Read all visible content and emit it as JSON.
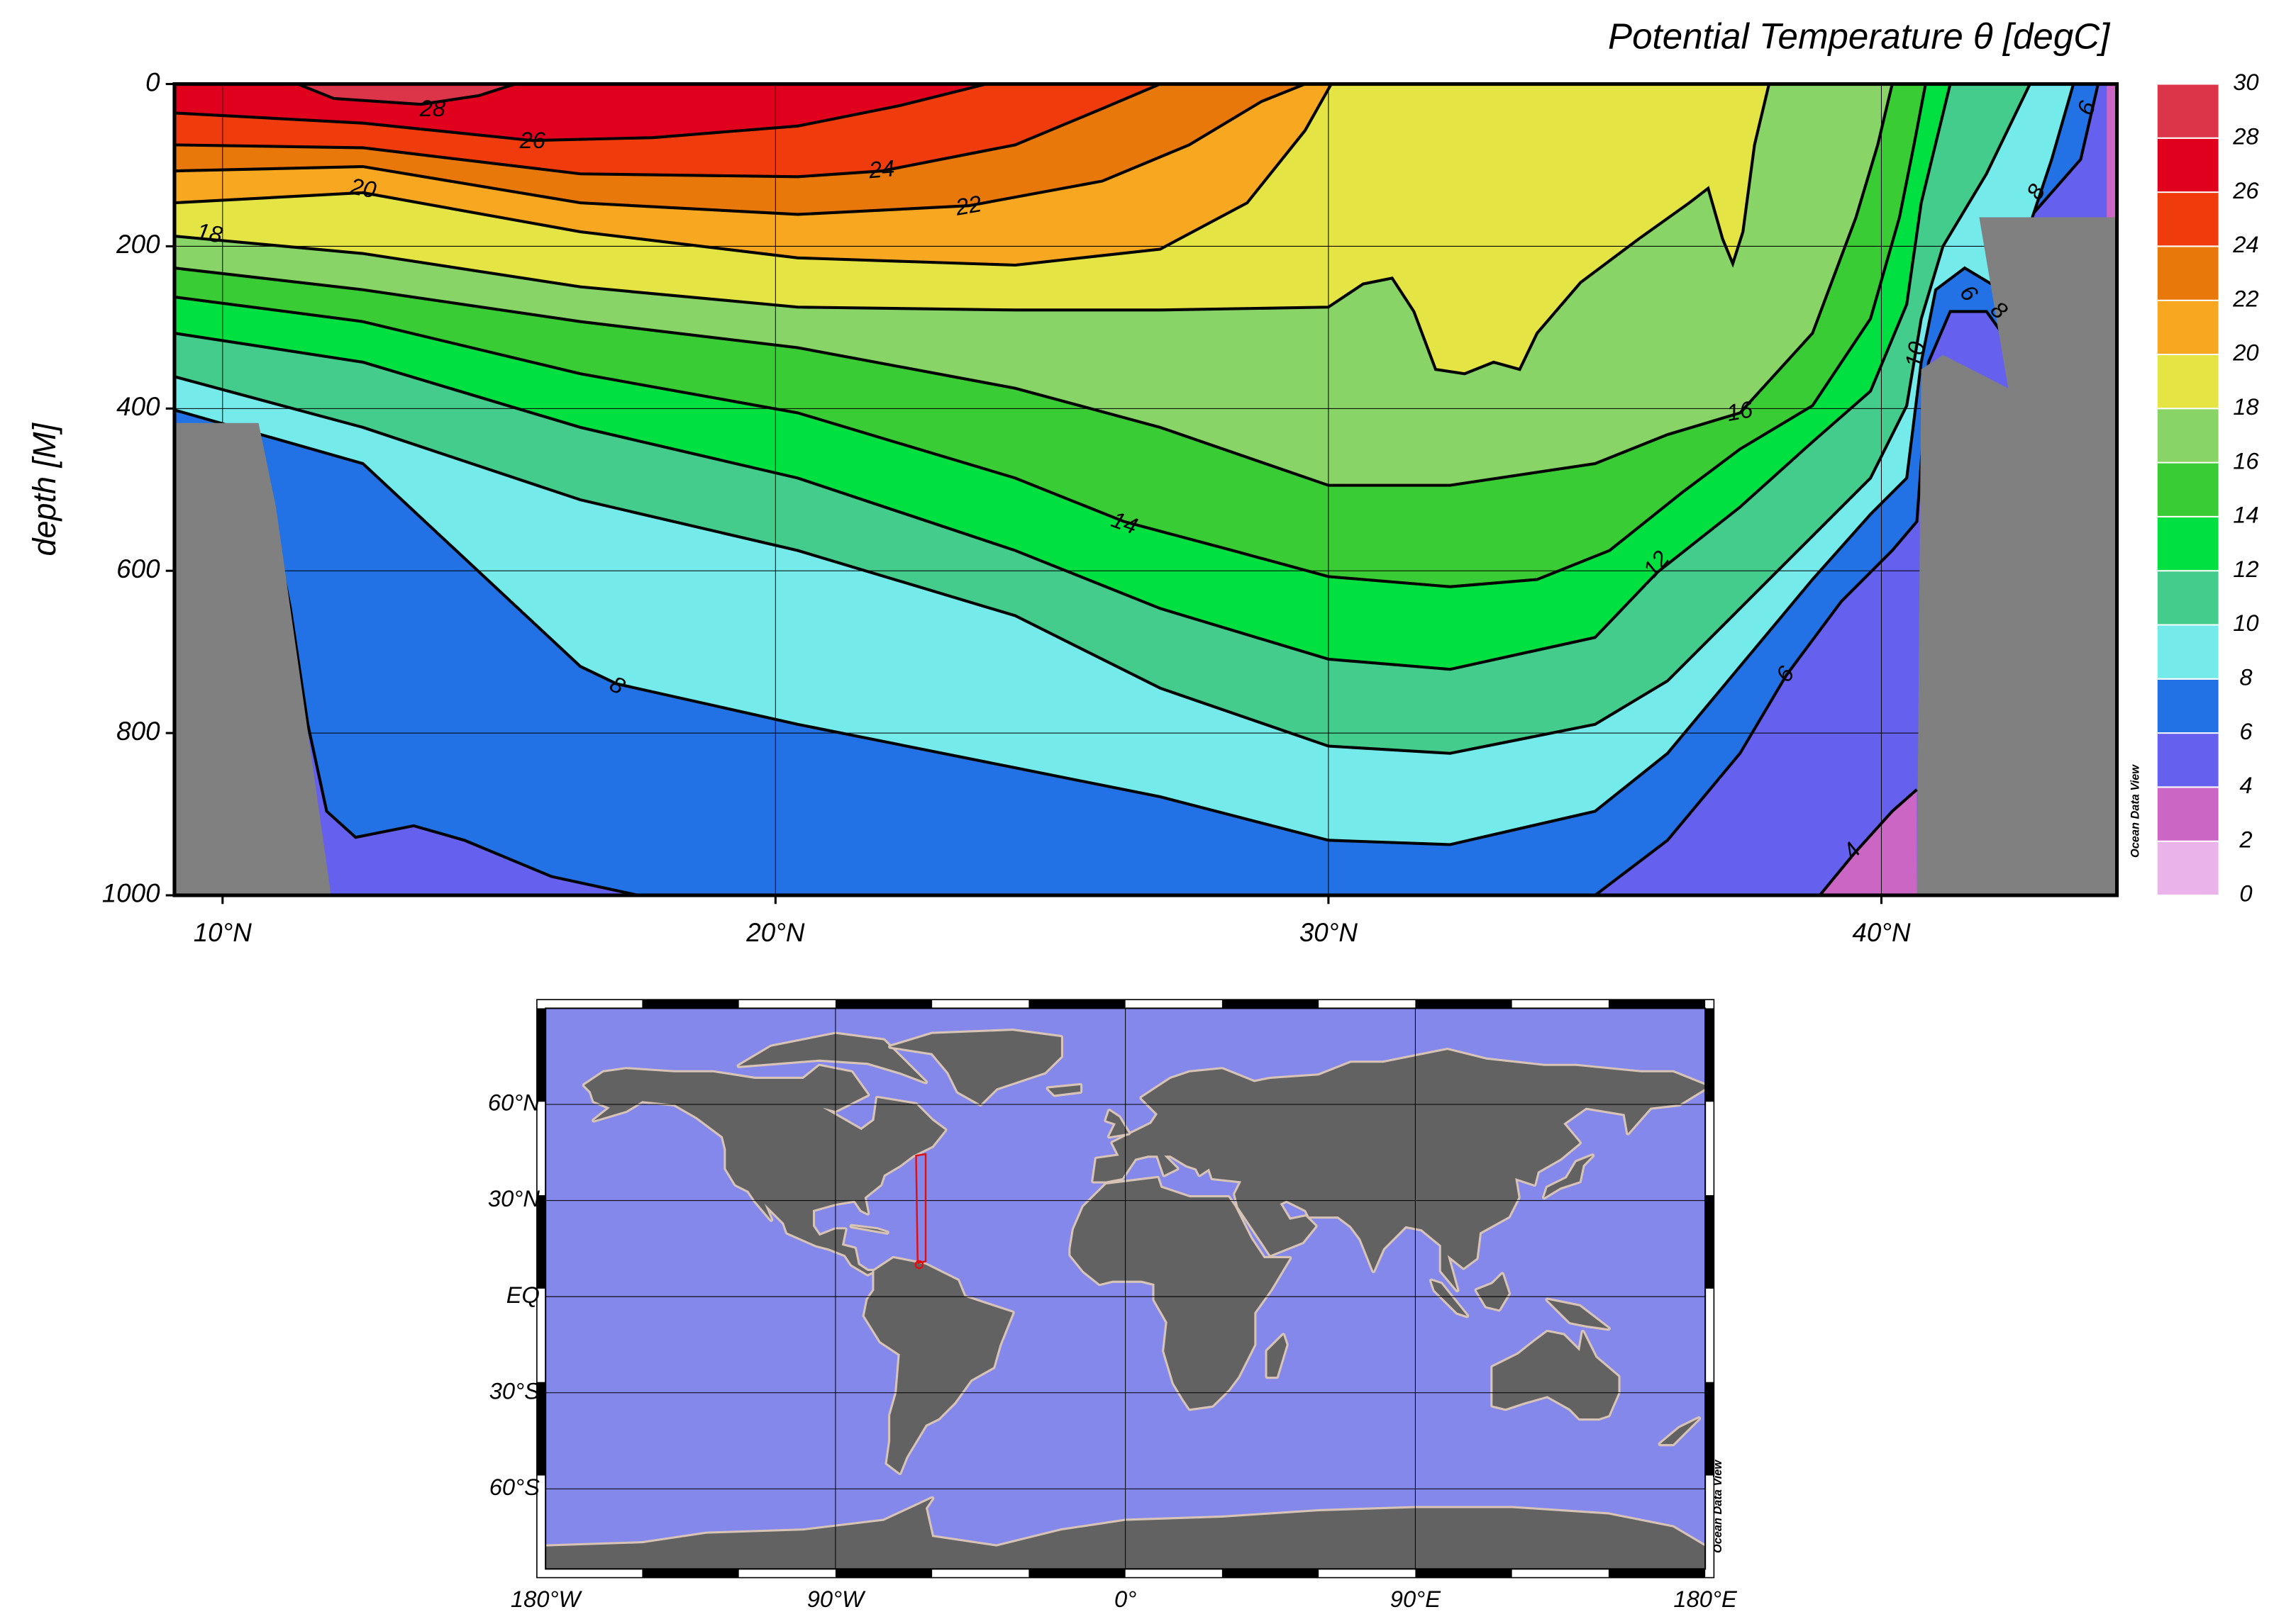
{
  "chart_data": [
    {
      "type": "contour",
      "title": "Potential Temperature θ [degC]",
      "ylabel": "depth [M]",
      "xlim": [
        9.13,
        44.26
      ],
      "ylim": [
        0,
        1000
      ],
      "y_inverted": true,
      "xticks": [
        {
          "value": 10,
          "label": "10°N"
        },
        {
          "value": 20,
          "label": "20°N"
        },
        {
          "value": 30,
          "label": "30°N"
        },
        {
          "value": 40,
          "label": "40°N"
        }
      ],
      "yticks": [
        0,
        200,
        400,
        600,
        800,
        1000
      ],
      "grid": true,
      "colorbar": {
        "levels": [
          0,
          2,
          4,
          6,
          8,
          10,
          12,
          14,
          16,
          18,
          20,
          22,
          24,
          26,
          28,
          30
        ],
        "colors": [
          "#eab4ea",
          "#cc66c4",
          "#6660ee",
          "#2272e6",
          "#74eaea",
          "#44cc8c",
          "#00e040",
          "#3acc34",
          "#88d466",
          "#e4e444",
          "#f8a820",
          "#e8780a",
          "#f03c0c",
          "#e0001e",
          "#dc3448"
        ]
      },
      "contour_labels": [
        28,
        26,
        24,
        22,
        20,
        18,
        16,
        14,
        12,
        10,
        8,
        8,
        8,
        6,
        6,
        6,
        4
      ],
      "watermark": "Ocean Data View"
    },
    {
      "type": "map",
      "xlim": [
        -180,
        180
      ],
      "ylim": [
        -85,
        90
      ],
      "xticks": [
        {
          "value": -180,
          "label": "180°W"
        },
        {
          "value": -90,
          "label": "90°W"
        },
        {
          "value": 0,
          "label": "0°"
        },
        {
          "value": 90,
          "label": "90°E"
        },
        {
          "value": 180,
          "label": "180°E"
        }
      ],
      "yticks": [
        {
          "value": 60,
          "label": "60°N"
        },
        {
          "value": 30,
          "label": "30°N"
        },
        {
          "value": 0,
          "label": "EQ"
        },
        {
          "value": -30,
          "label": "30°S"
        },
        {
          "value": -60,
          "label": "60°S"
        }
      ],
      "grid": true,
      "watermark": "Ocean Data View"
    }
  ]
}
